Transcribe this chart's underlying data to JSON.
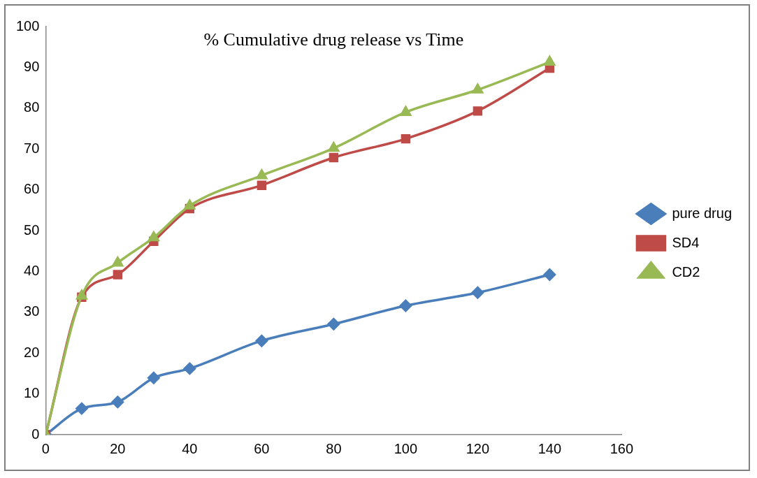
{
  "chart_data": {
    "type": "line",
    "title": "% Cumulative drug release vs Time",
    "x": [
      0,
      10,
      20,
      30,
      40,
      60,
      80,
      100,
      120,
      140
    ],
    "xlim": [
      0,
      160
    ],
    "xticks": [
      0,
      20,
      40,
      60,
      80,
      100,
      120,
      140,
      160
    ],
    "ylim": [
      0,
      100
    ],
    "yticks": [
      0,
      10,
      20,
      30,
      40,
      50,
      60,
      70,
      80,
      90,
      100
    ],
    "grid": false,
    "legend": "right",
    "line_style": "solid",
    "series": [
      {
        "name": "pure drug",
        "color": "#4a7ebb",
        "marker": "diamond",
        "values": [
          0,
          6.4,
          8.0,
          13.9,
          16.2,
          23.0,
          27.1,
          31.6,
          34.8,
          39.2
        ]
      },
      {
        "name": "SD4",
        "color": "#be4b48",
        "marker": "square",
        "values": [
          0,
          33.7,
          39.2,
          47.4,
          55.4,
          61.1,
          67.9,
          72.5,
          79.3,
          89.8
        ]
      },
      {
        "name": "CD2",
        "color": "#98b954",
        "marker": "triangle",
        "values": [
          0,
          34.0,
          42.1,
          48.3,
          56.1,
          63.5,
          70.2,
          79.0,
          84.5,
          91.3
        ]
      }
    ]
  }
}
